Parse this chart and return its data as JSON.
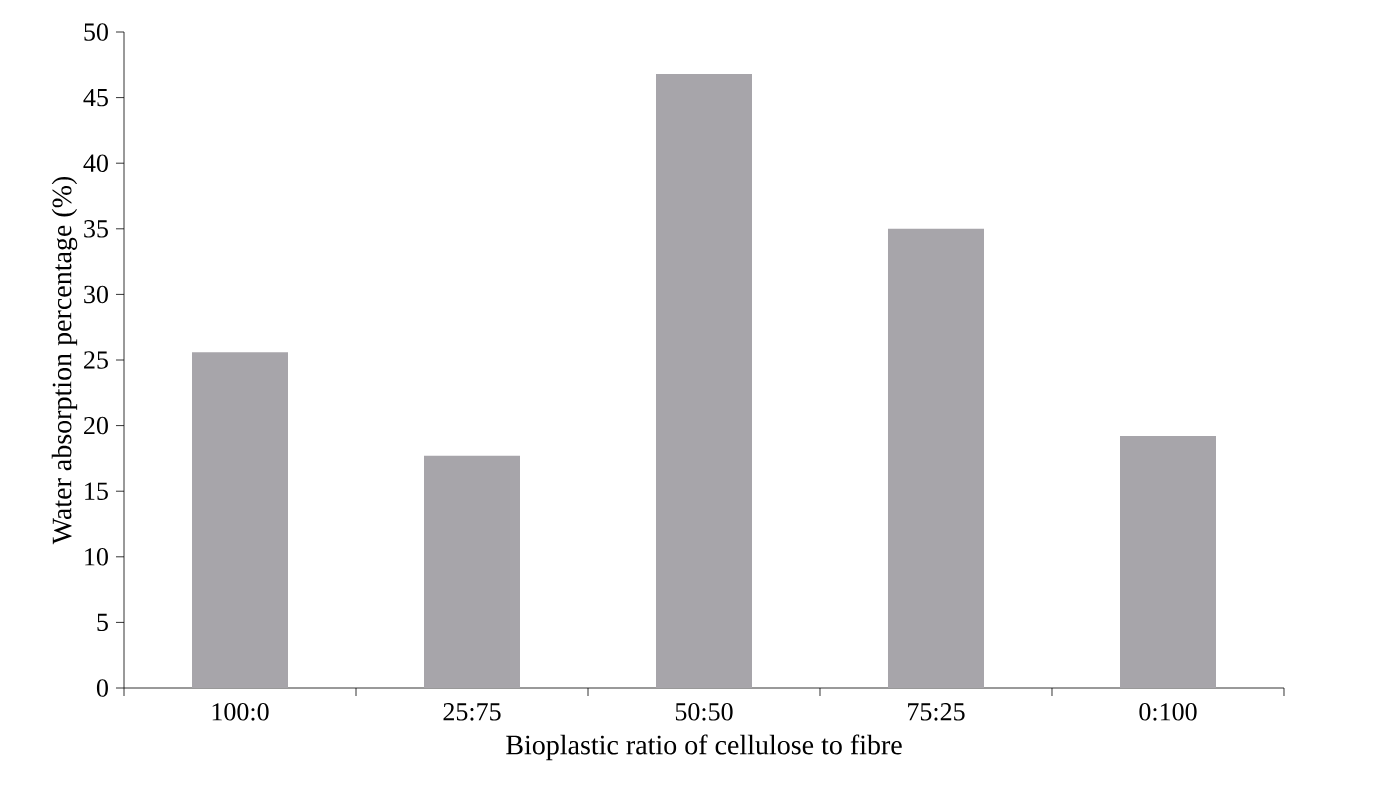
{
  "chart_data": {
    "type": "bar",
    "xlabel": "Bioplastic ratio of cellulose to fibre",
    "ylabel": "Water absorption percentage (%)",
    "categories": [
      "100:0",
      "25:75",
      "50:50",
      "75:25",
      "0:100"
    ],
    "values": [
      25.6,
      17.7,
      46.8,
      35.0,
      19.2
    ],
    "color": "#a7a5aa",
    "ylim": [
      0,
      50
    ],
    "yticks": [
      0,
      5,
      10,
      15,
      20,
      25,
      30,
      35,
      40,
      45,
      50
    ],
    "grid": false
  }
}
